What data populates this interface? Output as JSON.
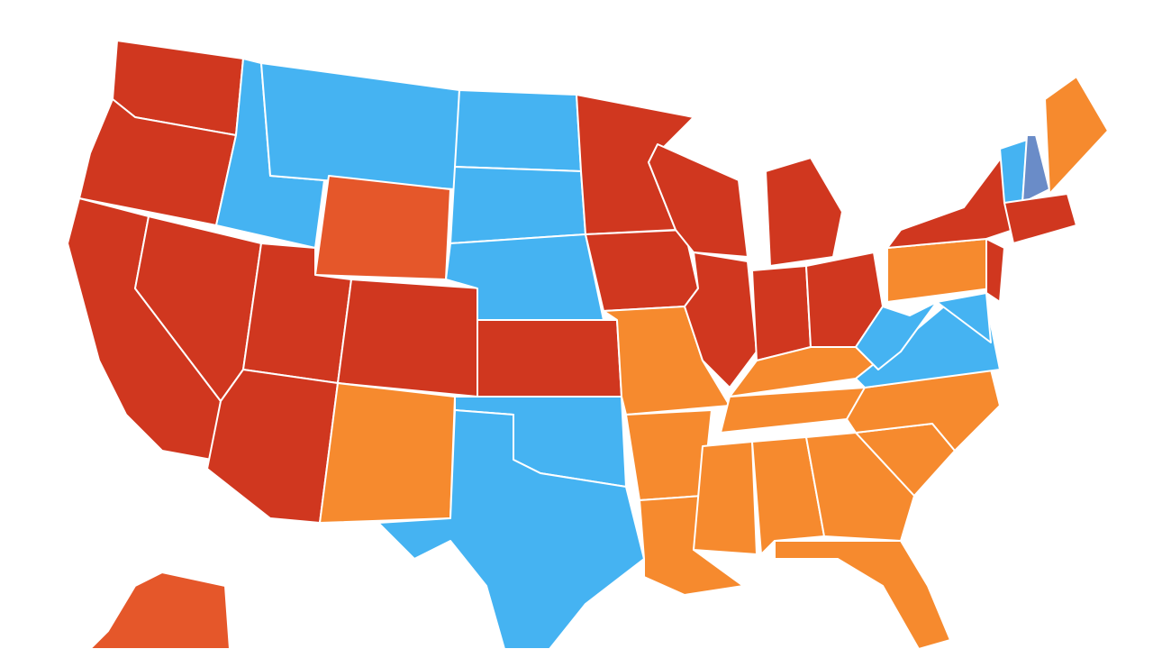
{
  "map": {
    "regions": [
      {
        "color": "#d0371f"
      },
      {
        "color": "#d0371f"
      },
      {
        "color": "#d0371f"
      },
      {
        "color": "#d0371f"
      },
      {
        "color": "#45b3f2"
      },
      {
        "color": "#45b3f2"
      },
      {
        "color": "#e5572a"
      },
      {
        "color": "#d0371f"
      },
      {
        "color": "#d0371f"
      },
      {
        "color": "#d0371f"
      },
      {
        "color": "#f68a2e"
      },
      {
        "color": "#45b3f2"
      },
      {
        "color": "#45b3f2"
      },
      {
        "color": "#45b3f2"
      },
      {
        "color": "#d0371f"
      },
      {
        "color": "#45b3f2"
      },
      {
        "color": "#45b3f2"
      },
      {
        "color": "#d0371f"
      },
      {
        "color": "#d0371f"
      },
      {
        "color": "#f68a2e"
      },
      {
        "color": "#f68a2e"
      },
      {
        "color": "#f68a2e"
      },
      {
        "color": "#d0371f"
      },
      {
        "color": "#d0371f"
      },
      {
        "color": "#d0371f"
      },
      {
        "color": "#d0371f"
      },
      {
        "color": "#d0371f"
      },
      {
        "color": "#f68a2e"
      },
      {
        "color": "#f68a2e"
      },
      {
        "color": "#f68a2e"
      },
      {
        "color": "#f68a2e"
      },
      {
        "color": "#f68a2e"
      },
      {
        "color": "#f68a2e"
      },
      {
        "color": "#f68a2e"
      },
      {
        "color": "#f68a2e"
      },
      {
        "color": "#45b3f2"
      },
      {
        "color": "#45b3f2"
      },
      {
        "color": "#f68a2e"
      },
      {
        "color": "#d0371f"
      },
      {
        "color": "#d0371f"
      },
      {
        "color": "#45b3f2"
      },
      {
        "color": "#45b3f2"
      },
      {
        "color": "#6a8cc8"
      },
      {
        "color": "#f68a2e"
      },
      {
        "color": "#d0371f"
      },
      {
        "color": "#e5572a"
      }
    ]
  }
}
